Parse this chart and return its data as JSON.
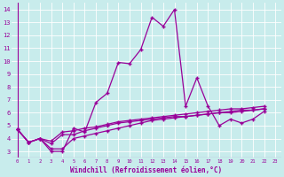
{
  "xlabel": "Windchill (Refroidissement éolien,°C)",
  "bg_color": "#c8ecec",
  "line_color": "#990099",
  "grid_color": "#b0c8c8",
  "xlim": [
    -0.5,
    23.5
  ],
  "ylim": [
    2.5,
    14.5
  ],
  "yticks": [
    3,
    4,
    5,
    6,
    7,
    8,
    9,
    10,
    11,
    12,
    13,
    14
  ],
  "xticks": [
    0,
    1,
    2,
    3,
    4,
    5,
    6,
    7,
    8,
    9,
    10,
    11,
    12,
    13,
    14,
    15,
    16,
    17,
    18,
    19,
    20,
    21,
    22,
    23
  ],
  "lines": [
    [
      4.7,
      3.7,
      4.0,
      3.0,
      3.0,
      4.8,
      4.5,
      6.8,
      7.5,
      9.9,
      9.8,
      10.9,
      13.4,
      12.7,
      14.0,
      6.5,
      8.7,
      6.5,
      5.0,
      5.5,
      5.2,
      5.5,
      6.1
    ],
    [
      4.7,
      3.7,
      4.0,
      3.6,
      4.3,
      4.3,
      4.6,
      4.8,
      5.0,
      5.2,
      5.3,
      5.4,
      5.5,
      5.6,
      5.7,
      5.7,
      5.8,
      5.9,
      6.0,
      6.1,
      6.2,
      6.2,
      6.3
    ],
    [
      4.7,
      3.7,
      4.0,
      3.8,
      4.5,
      4.6,
      4.8,
      4.9,
      5.1,
      5.3,
      5.4,
      5.5,
      5.6,
      5.7,
      5.8,
      5.9,
      6.0,
      6.1,
      6.2,
      6.3,
      6.3,
      6.4,
      6.5
    ],
    [
      4.7,
      3.7,
      4.0,
      3.2,
      3.2,
      4.0,
      4.2,
      4.4,
      4.6,
      4.8,
      5.0,
      5.2,
      5.4,
      5.5,
      5.6,
      5.7,
      5.8,
      5.9,
      6.0,
      6.0,
      6.1,
      6.2,
      6.3
    ]
  ]
}
